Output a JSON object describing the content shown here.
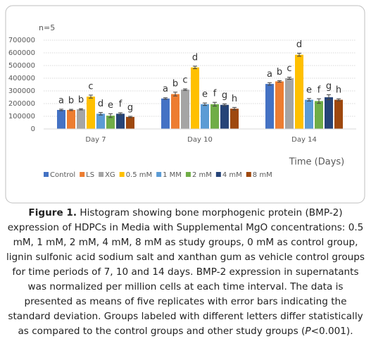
{
  "chart_data": {
    "type": "bar",
    "annotation": "n=5",
    "x_label": "Time (Days)",
    "categories": [
      "Day 7",
      "Day 10",
      "Day 14"
    ],
    "ylim": [
      0,
      700000
    ],
    "yticks": [
      0,
      100000,
      200000,
      300000,
      400000,
      500000,
      600000,
      700000
    ],
    "grid": true,
    "legend": "bottom",
    "series": [
      {
        "name": "Control",
        "color": "#4472c4",
        "values": [
          150000,
          240000,
          355000
        ],
        "errors": [
          6000,
          6000,
          10000
        ],
        "letters": [
          "a",
          "a",
          "a"
        ]
      },
      {
        "name": "LS",
        "color": "#ed7d31",
        "values": [
          150000,
          275000,
          375000
        ],
        "errors": [
          5000,
          15000,
          6000
        ],
        "letters": [
          "b",
          "b",
          "b"
        ]
      },
      {
        "name": "XG",
        "color": "#a5a5a5",
        "values": [
          155000,
          310000,
          400000
        ],
        "errors": [
          5000,
          6000,
          8000
        ],
        "letters": [
          "b",
          "c",
          "c"
        ]
      },
      {
        "name": "0.5 mM",
        "color": "#ffc000",
        "values": [
          255000,
          485000,
          585000
        ],
        "errors": [
          12000,
          10000,
          12000
        ],
        "letters": [
          "c",
          "d",
          "d"
        ]
      },
      {
        "name": "1 MM",
        "color": "#5b9bd5",
        "values": [
          120000,
          195000,
          230000
        ],
        "errors": [
          10000,
          10000,
          10000
        ],
        "letters": [
          "d",
          "e",
          "e"
        ]
      },
      {
        "name": "2 mM",
        "color": "#70ad47",
        "values": [
          105000,
          195000,
          220000
        ],
        "errors": [
          15000,
          15000,
          18000
        ],
        "letters": [
          "e",
          "f",
          "f"
        ]
      },
      {
        "name": "4 mM",
        "color": "#264478",
        "values": [
          120000,
          190000,
          250000
        ],
        "errors": [
          8000,
          8000,
          20000
        ],
        "letters": [
          "f",
          "g",
          "g"
        ]
      },
      {
        "name": "8 mM",
        "color": "#9e480e",
        "values": [
          95000,
          160000,
          230000
        ],
        "errors": [
          5000,
          10000,
          8000
        ],
        "letters": [
          "g",
          "h",
          "h"
        ]
      }
    ]
  },
  "caption": {
    "label": "Figure 1.",
    "text": " Histogram showing bone morphogenic protein (BMP-2) expression of HDPCs in Media with Supplemental MgO concentrations: 0.5 mM, 1 mM, 2 mM, 4 mM, 8 mM as study groups, 0 mM as control group, lignin sulfonic acid sodium salt and xanthan gum as vehicle control groups for time periods of 7, 10 and 14 days. BMP-2 expression in supernatants was normalized per million cells at each time interval. The data is presented as means of five replicates with error bars indicating the standard deviation. Groups labeled with different letters differ statistically as compared to the control groups and other study groups (",
    "italic": "P",
    "end": "<0.001)."
  }
}
